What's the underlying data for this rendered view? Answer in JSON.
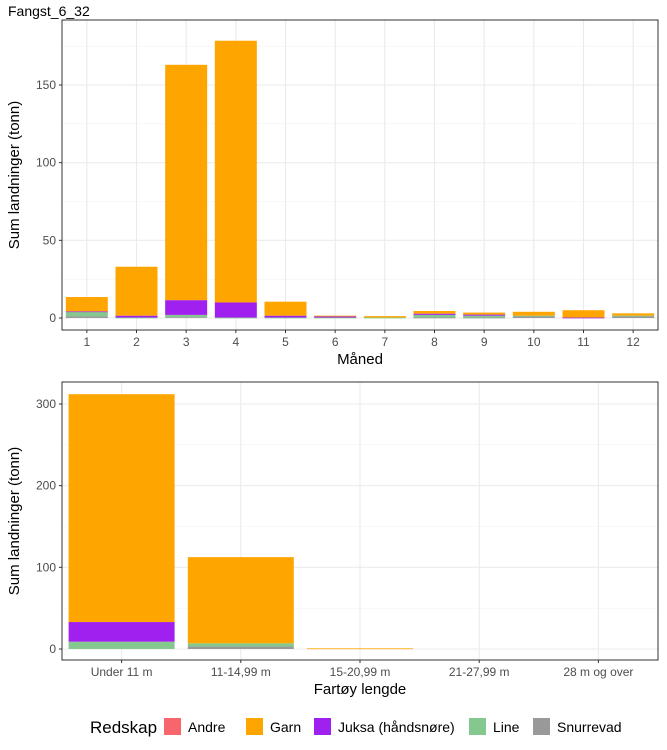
{
  "chart_data": [
    {
      "type": "bar",
      "stacked": true,
      "title": "Fangst_6_32",
      "xlabel": "Måned",
      "ylabel": "Sum landninger (tonn)",
      "categories": [
        "1",
        "2",
        "3",
        "4",
        "5",
        "6",
        "7",
        "8",
        "9",
        "10",
        "11",
        "12"
      ],
      "yticks": [
        0,
        50,
        100,
        150
      ],
      "ylim": [
        0,
        185
      ],
      "series": [
        {
          "name": "Snurrevad",
          "values": [
            1,
            0,
            0.5,
            0,
            0,
            0,
            0,
            0.3,
            0.3,
            1,
            0,
            1
          ]
        },
        {
          "name": "Line",
          "values": [
            3,
            0.3,
            1.5,
            0.3,
            0.3,
            0.3,
            0.3,
            1.7,
            1.2,
            0.5,
            0,
            0.5
          ]
        },
        {
          "name": "Juksa (håndsnøre)",
          "values": [
            0.3,
            1.2,
            9.5,
            9.7,
            1.2,
            1,
            0,
            0.8,
            0.7,
            0,
            0.3,
            0
          ]
        },
        {
          "name": "Garn",
          "values": [
            9.2,
            31.5,
            151.5,
            168.5,
            9,
            0.2,
            0.9,
            1.7,
            1.3,
            2.5,
            4.7,
            1.5
          ]
        },
        {
          "name": "Andre",
          "values": [
            0,
            0,
            0,
            0,
            0,
            0,
            0,
            0,
            0,
            0,
            0,
            0
          ]
        }
      ]
    },
    {
      "type": "bar",
      "stacked": true,
      "xlabel": "Fartøy lengde",
      "ylabel": "Sum landninger (tonn)",
      "categories": [
        "Under 11 m",
        "11-14,99 m",
        "15-20,99 m",
        "21-27,99 m",
        "28 m og over"
      ],
      "yticks": [
        0,
        100,
        200,
        300
      ],
      "ylim": [
        0,
        330
      ],
      "series": [
        {
          "name": "Snurrevad",
          "values": [
            0,
            3,
            0,
            0,
            0
          ]
        },
        {
          "name": "Line",
          "values": [
            9,
            4,
            0,
            0,
            0
          ]
        },
        {
          "name": "Juksa (håndsnøre)",
          "values": [
            24,
            0,
            0,
            0,
            0
          ]
        },
        {
          "name": "Garn",
          "values": [
            279,
            105.5,
            0.8,
            0,
            0
          ]
        },
        {
          "name": "Andre",
          "values": [
            0,
            0,
            0,
            0,
            0
          ]
        }
      ]
    }
  ],
  "legend": {
    "title": "Redskap",
    "placement": "bottom",
    "items": [
      {
        "name": "Andre",
        "color": "#F8666D"
      },
      {
        "name": "Garn",
        "color": "#FFA500"
      },
      {
        "name": "Juksa (håndsnøre)",
        "color": "#A020F0"
      },
      {
        "name": "Line",
        "color": "#85C88F"
      },
      {
        "name": "Snurrevad",
        "color": "#999999"
      }
    ]
  }
}
